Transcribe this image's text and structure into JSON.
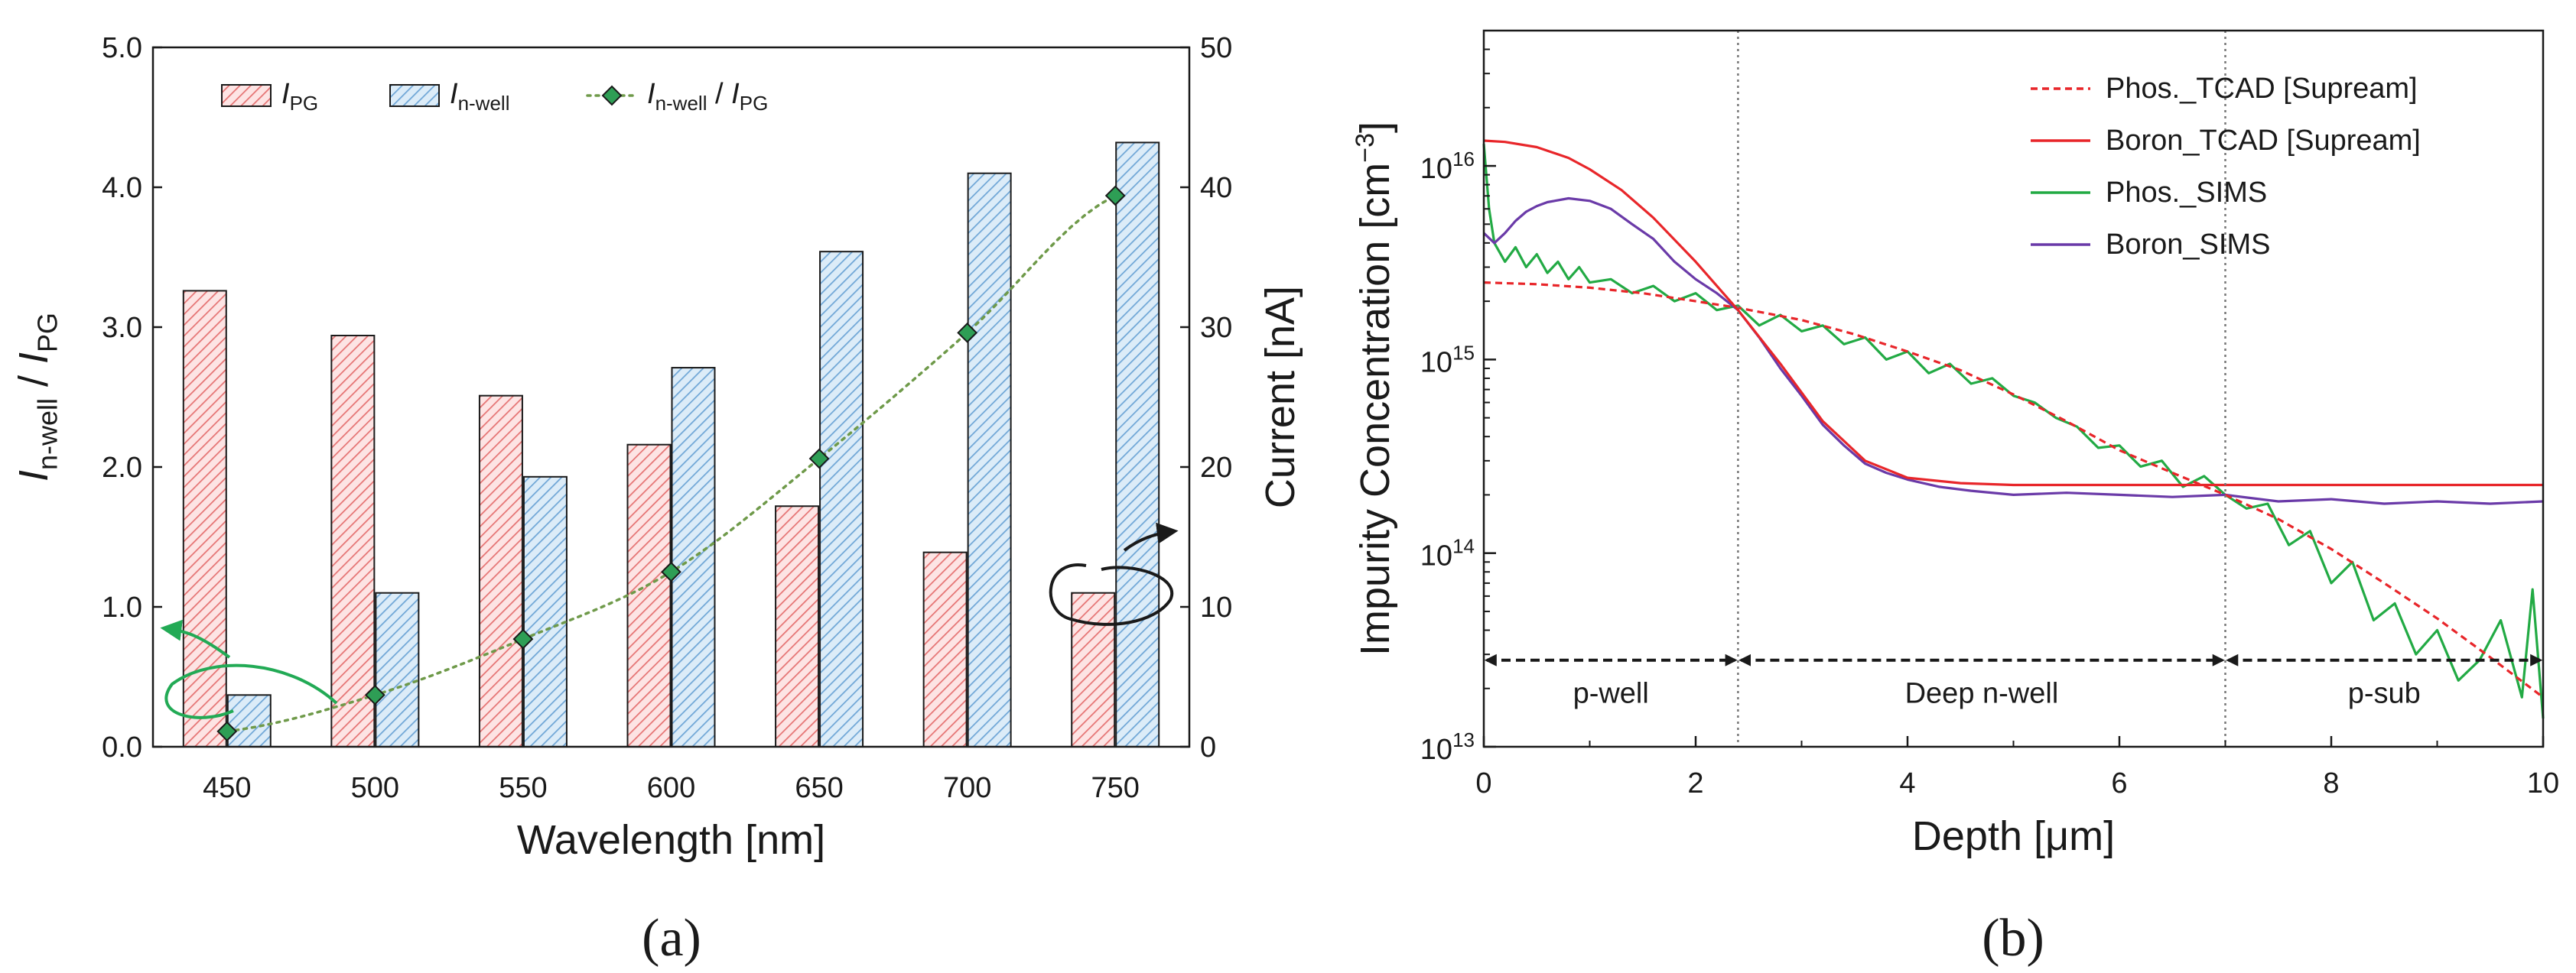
{
  "colors": {
    "ipg_fill": "#f4a8a8",
    "ipg_stroke": "#d9534f",
    "inwell_fill": "#a9cdea",
    "inwell_stroke": "#4a88c6",
    "ratio_line": "#6f9a4a",
    "ratio_marker": "#2e9e55",
    "phos_tcad": "#e8262a",
    "boron_tcad": "#e8262a",
    "phos_sims": "#22aa44",
    "boron_sims": "#6a3aa8",
    "green_arrow": "#22aa55",
    "black_arrow": "#1a1a1a"
  },
  "icons": {
    "left_arrow": "curved-arrow-left-axis-icon",
    "right_arrow": "curved-arrow-right-axis-icon"
  },
  "panel_labels": {
    "a": "(a)",
    "b": "(b)"
  },
  "chart_data": [
    {
      "id": "a",
      "type": "bar",
      "xlabel": "Wavelength [nm]",
      "ylabel_left": {
        "main": "I",
        "sub1": "n-well",
        "mid": " / ",
        "main2": "I",
        "sub2": "PG"
      },
      "ylabel_right": "Current [nA]",
      "categories": [
        "450",
        "500",
        "550",
        "600",
        "650",
        "700",
        "750"
      ],
      "y_left_lim": [
        0,
        5
      ],
      "y_left_ticks": [
        "0.0",
        "1.0",
        "2.0",
        "3.0",
        "4.0",
        "5.0"
      ],
      "y_right_lim": [
        0,
        50
      ],
      "y_right_ticks": [
        "0",
        "10",
        "20",
        "30",
        "40",
        "50"
      ],
      "grid": false,
      "legend_position": "top",
      "series": [
        {
          "name": "IPG",
          "legend": {
            "main": "I",
            "sub": "PG"
          },
          "axis": "right",
          "kind": "bar",
          "values": [
            32.6,
            29.4,
            25.1,
            21.6,
            17.2,
            13.9,
            11.0
          ]
        },
        {
          "name": "In-well",
          "legend": {
            "main": "I",
            "sub": "n-well"
          },
          "axis": "right",
          "kind": "bar",
          "values": [
            3.7,
            11.0,
            19.3,
            27.1,
            35.4,
            41.0,
            43.2
          ]
        },
        {
          "name": "In-well / IPG",
          "legend": {
            "main": "I",
            "sub": "n-well",
            "mid": " / ",
            "main2": "I",
            "sub2": "PG"
          },
          "axis": "left",
          "kind": "line",
          "values": [
            0.11,
            0.37,
            0.77,
            1.25,
            2.06,
            2.96,
            3.94
          ]
        }
      ]
    },
    {
      "id": "b",
      "type": "line",
      "xlabel": "Depth [μm]",
      "ylabel": {
        "main": "Impurity Concentration [cm",
        "sup": "−3",
        "end": "]"
      },
      "xlim": [
        0,
        10
      ],
      "x_ticks": [
        "0",
        "2",
        "4",
        "6",
        "8",
        "10"
      ],
      "ylim": [
        10000000000000.0,
        5e+16
      ],
      "y_scale": "log",
      "y_ticks": [
        {
          "base": "10",
          "exp": "13"
        },
        {
          "base": "10",
          "exp": "14"
        },
        {
          "base": "10",
          "exp": "15"
        },
        {
          "base": "10",
          "exp": "16"
        }
      ],
      "grid": false,
      "legend_position": "top-right",
      "boundaries": [
        2.4,
        7.0
      ],
      "regions": [
        {
          "label": "p-well",
          "from": 0,
          "to": 2.4
        },
        {
          "label": "Deep n-well",
          "from": 2.4,
          "to": 7.0
        },
        {
          "label": "p-sub",
          "from": 7.0,
          "to": 10
        }
      ],
      "region_arrow_y": 28000000000000.0,
      "series": [
        {
          "name": "Phos._TCAD [Supream]",
          "style": "dashed",
          "x": [
            0,
            0.5,
            1,
            1.5,
            2,
            2.4,
            3,
            3.5,
            4,
            4.5,
            5,
            5.5,
            6,
            6.5,
            7,
            7.5,
            8,
            8.5,
            9,
            9.5,
            10
          ],
          "y": [
            2500000000000000.0,
            2450000000000000.0,
            2350000000000000.0,
            2200000000000000.0,
            2000000000000000.0,
            1850000000000000.0,
            1600000000000000.0,
            1350000000000000.0,
            1100000000000000.0,
            880000000000000.0,
            660000000000000.0,
            480000000000000.0,
            340000000000000.0,
            260000000000000.0,
            200000000000000.0,
            150000000000000.0,
            105000000000000.0,
            70000000000000.0,
            46000000000000.0,
            29000000000000.0,
            18000000000000.0
          ]
        },
        {
          "name": "Boron_TCAD [Supream]",
          "style": "solid",
          "x": [
            0,
            0.2,
            0.5,
            0.8,
            1,
            1.3,
            1.6,
            2,
            2.4,
            2.8,
            3.2,
            3.6,
            4,
            4.5,
            5,
            6,
            7,
            8,
            9,
            10
          ],
          "y": [
            1.35e+16,
            1.33e+16,
            1.25e+16,
            1.1e+16,
            9600000000000000.0,
            7500000000000000.0,
            5400000000000000.0,
            3200000000000000.0,
            1800000000000000.0,
            950000000000000.0,
            480000000000000.0,
            300000000000000.0,
            245000000000000.0,
            230000000000000.0,
            225000000000000.0,
            225000000000000.0,
            225000000000000.0,
            225000000000000.0,
            225000000000000.0,
            225000000000000.0
          ]
        },
        {
          "name": "Phos._SIMS",
          "style": "solid",
          "x": [
            0,
            0.05,
            0.1,
            0.2,
            0.3,
            0.4,
            0.5,
            0.6,
            0.7,
            0.8,
            0.9,
            1,
            1.2,
            1.4,
            1.6,
            1.8,
            2,
            2.2,
            2.4,
            2.6,
            2.8,
            3,
            3.2,
            3.4,
            3.6,
            3.8,
            4,
            4.2,
            4.4,
            4.6,
            4.8,
            5,
            5.2,
            5.4,
            5.6,
            5.8,
            6,
            6.2,
            6.4,
            6.6,
            6.8,
            7,
            7.2,
            7.4,
            7.6,
            7.8,
            8,
            8.2,
            8.4,
            8.6,
            8.8,
            9,
            9.2,
            9.4,
            9.6,
            9.8,
            9.9,
            10
          ],
          "y": [
            1.3e+16,
            6000000000000000.0,
            4000000000000000.0,
            3200000000000000.0,
            3800000000000000.0,
            3000000000000000.0,
            3500000000000000.0,
            2800000000000000.0,
            3200000000000000.0,
            2600000000000000.0,
            3000000000000000.0,
            2500000000000000.0,
            2600000000000000.0,
            2200000000000000.0,
            2400000000000000.0,
            2000000000000000.0,
            2200000000000000.0,
            1800000000000000.0,
            1900000000000000.0,
            1500000000000000.0,
            1700000000000000.0,
            1400000000000000.0,
            1500000000000000.0,
            1200000000000000.0,
            1300000000000000.0,
            1000000000000000.0,
            1100000000000000.0,
            850000000000000.0,
            950000000000000.0,
            750000000000000.0,
            800000000000000.0,
            650000000000000.0,
            600000000000000.0,
            500000000000000.0,
            450000000000000.0,
            350000000000000.0,
            360000000000000.0,
            280000000000000.0,
            300000000000000.0,
            220000000000000.0,
            250000000000000.0,
            200000000000000.0,
            170000000000000.0,
            180000000000000.0,
            110000000000000.0,
            130000000000000.0,
            70000000000000.0,
            90000000000000.0,
            45000000000000.0,
            55000000000000.0,
            30000000000000.0,
            40000000000000.0,
            22000000000000.0,
            28000000000000.0,
            45000000000000.0,
            18000000000000.0,
            65000000000000.0,
            14000000000000.0
          ]
        },
        {
          "name": "Boron_SIMS",
          "style": "solid",
          "x": [
            0,
            0.1,
            0.2,
            0.3,
            0.4,
            0.5,
            0.6,
            0.8,
            1,
            1.2,
            1.4,
            1.6,
            1.8,
            2,
            2.2,
            2.4,
            2.6,
            2.8,
            3,
            3.2,
            3.4,
            3.6,
            3.8,
            4,
            4.3,
            4.6,
            5,
            5.5,
            6,
            6.5,
            7,
            7.5,
            8,
            8.5,
            9,
            9.5,
            10
          ],
          "y": [
            4500000000000000.0,
            4000000000000000.0,
            4500000000000000.0,
            5200000000000000.0,
            5800000000000000.0,
            6200000000000000.0,
            6500000000000000.0,
            6800000000000000.0,
            6600000000000000.0,
            6000000000000000.0,
            5000000000000000.0,
            4200000000000000.0,
            3200000000000000.0,
            2600000000000000.0,
            2200000000000000.0,
            1800000000000000.0,
            1300000000000000.0,
            900000000000000.0,
            650000000000000.0,
            460000000000000.0,
            360000000000000.0,
            290000000000000.0,
            260000000000000.0,
            240000000000000.0,
            220000000000000.0,
            210000000000000.0,
            200000000000000.0,
            205000000000000.0,
            200000000000000.0,
            195000000000000.0,
            200000000000000.0,
            185000000000000.0,
            190000000000000.0,
            180000000000000.0,
            185000000000000.0,
            180000000000000.0,
            185000000000000.0
          ]
        }
      ]
    }
  ]
}
